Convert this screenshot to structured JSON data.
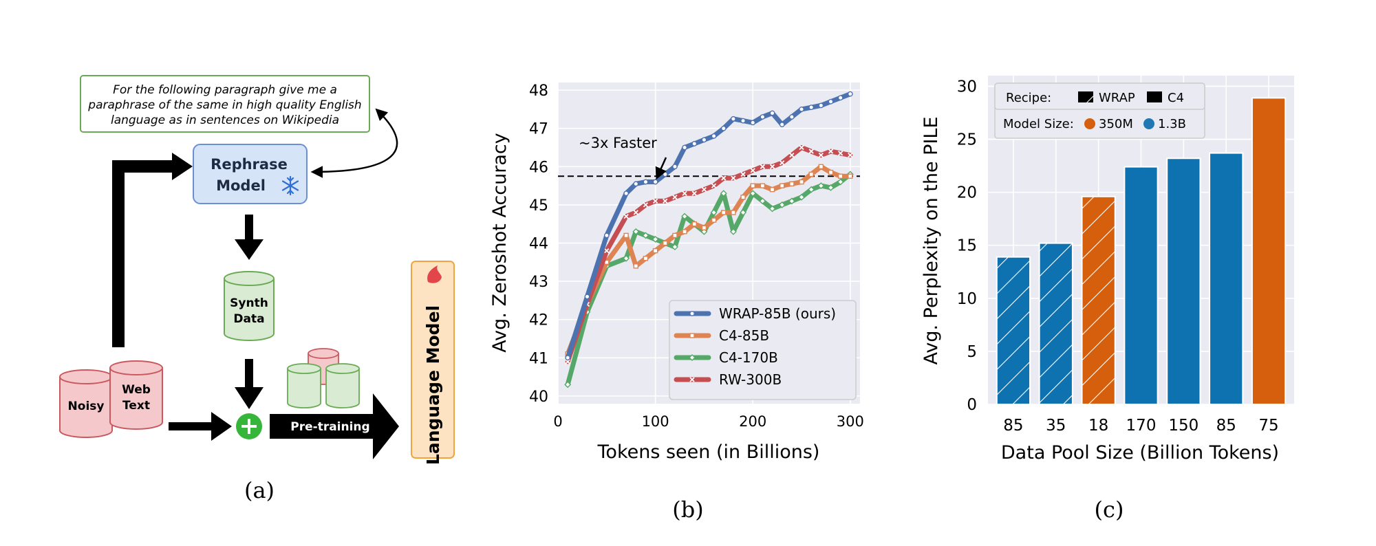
{
  "panel_a": {
    "prompt_lines": [
      "For the following paragraph give me a",
      "paraphrase of the same in high quality English",
      "language as in sentences on Wikipedia"
    ],
    "rephrase_lines": [
      "Rephrase",
      "Model"
    ],
    "synth_lines": [
      "Synth",
      "Data"
    ],
    "noisy": "Noisy",
    "web_lines": [
      "Web",
      "Text"
    ],
    "pretraining": "Pre-training",
    "language_model": "Language Model",
    "colors": {
      "green": "#6aaa55",
      "blue_fill": "#d6e4f8",
      "blue_stroke": "#6b8fd6",
      "red_fill": "#f5c9cb",
      "red_stroke": "#c9595f",
      "orange_fill": "#fde3c2",
      "orange_stroke": "#f0a43e"
    }
  },
  "panel_b": {
    "annotation": "~3x Faster"
  },
  "chart_data": [
    {
      "type": "line",
      "title": "",
      "xlabel": "Tokens seen (in Billions)",
      "ylabel": "Avg. Zeroshot Accuracy",
      "xlim": [
        0,
        310
      ],
      "ylim": [
        39.8,
        48.2
      ],
      "xticks": [
        0,
        100,
        200,
        300
      ],
      "yticks": [
        40,
        41,
        42,
        43,
        44,
        45,
        46,
        47,
        48
      ],
      "reference_line_y": 45.75,
      "legend_position": "lower-right",
      "series": [
        {
          "name": "WRAP-85B (ours)",
          "color": "#4c72b0",
          "marker": "circle",
          "x": [
            10,
            30,
            50,
            70,
            80,
            90,
            100,
            110,
            120,
            130,
            140,
            150,
            160,
            170,
            180,
            190,
            200,
            210,
            220,
            230,
            240,
            250,
            260,
            270,
            280,
            290,
            300
          ],
          "y": [
            41,
            42.6,
            44.2,
            45.3,
            45.55,
            45.6,
            45.6,
            45.8,
            46.0,
            46.5,
            46.6,
            46.7,
            46.8,
            47.0,
            47.25,
            47.2,
            47.15,
            47.3,
            47.4,
            47.1,
            47.3,
            47.5,
            47.55,
            47.6,
            47.7,
            47.8,
            47.9
          ]
        },
        {
          "name": "C4-85B",
          "color": "#dd8452",
          "marker": "square",
          "x": [
            10,
            30,
            50,
            70,
            80,
            90,
            100,
            110,
            120,
            130,
            140,
            150,
            160,
            170,
            180,
            190,
            200,
            210,
            220,
            230,
            240,
            250,
            260,
            270,
            280,
            290,
            300
          ],
          "y": [
            41.1,
            42.4,
            43.5,
            44.2,
            43.4,
            43.6,
            43.8,
            44.0,
            44.2,
            44.3,
            44.5,
            44.4,
            44.6,
            44.8,
            44.8,
            45.2,
            45.5,
            45.5,
            45.4,
            45.5,
            45.55,
            45.6,
            45.8,
            46.0,
            45.85,
            45.75,
            45.75
          ]
        },
        {
          "name": "C4-170B",
          "color": "#55a868",
          "marker": "diamond",
          "x": [
            10,
            30,
            50,
            70,
            80,
            90,
            100,
            110,
            120,
            130,
            140,
            150,
            160,
            170,
            180,
            190,
            200,
            210,
            220,
            230,
            240,
            250,
            260,
            270,
            280,
            290,
            300
          ],
          "y": [
            40.3,
            42.2,
            43.4,
            43.6,
            44.3,
            44.2,
            44.1,
            44.0,
            43.9,
            44.7,
            44.5,
            44.3,
            44.8,
            45.3,
            44.3,
            44.8,
            45.3,
            45.1,
            44.9,
            45.0,
            45.1,
            45.2,
            45.4,
            45.5,
            45.45,
            45.6,
            45.8
          ]
        },
        {
          "name": "RW-300B",
          "color": "#c44e52",
          "marker": "x",
          "x": [
            10,
            30,
            50,
            70,
            80,
            90,
            100,
            110,
            120,
            130,
            140,
            150,
            160,
            170,
            180,
            190,
            200,
            210,
            220,
            230,
            240,
            250,
            260,
            270,
            280,
            290,
            300
          ],
          "y": [
            40.9,
            42.4,
            43.8,
            44.7,
            44.8,
            45.0,
            45.1,
            45.1,
            45.2,
            45.3,
            45.3,
            45.4,
            45.5,
            45.7,
            45.7,
            45.8,
            45.9,
            46.0,
            46.0,
            46.1,
            46.3,
            46.5,
            46.4,
            46.3,
            46.4,
            46.35,
            46.3
          ]
        }
      ]
    },
    {
      "type": "bar",
      "title": "",
      "xlabel": "Data Pool Size (Billion Tokens)",
      "ylabel": "Avg. Perplexity on the PILE",
      "ylim": [
        0,
        31
      ],
      "yticks": [
        0,
        5,
        10,
        15,
        20,
        25,
        30
      ],
      "categories": [
        "85",
        "35",
        "18",
        "170",
        "150",
        "85",
        "75"
      ],
      "values": [
        13.9,
        15.2,
        19.6,
        22.4,
        23.2,
        23.7,
        28.9
      ],
      "recipe": [
        "WRAP",
        "WRAP",
        "WRAP",
        "C4",
        "C4",
        "C4",
        "C4"
      ],
      "model_size": [
        "1.3B",
        "1.3B",
        "350M",
        "1.3B",
        "1.3B",
        "1.3B",
        "350M"
      ],
      "legend_position": "top-left",
      "legend": {
        "recipe_label": "Recipe:",
        "recipe_entries": [
          "WRAP",
          "C4"
        ],
        "size_label": "Model Size:",
        "size_entries": [
          {
            "name": "350M",
            "color": "#d65f0e"
          },
          {
            "name": "1.3B",
            "color": "#1f77b4"
          }
        ]
      },
      "colors": {
        "350M": "#d65f0e",
        "1.3B": "#0f72b0"
      }
    }
  ],
  "captions": [
    "(a)",
    "(b)",
    "(c)"
  ]
}
